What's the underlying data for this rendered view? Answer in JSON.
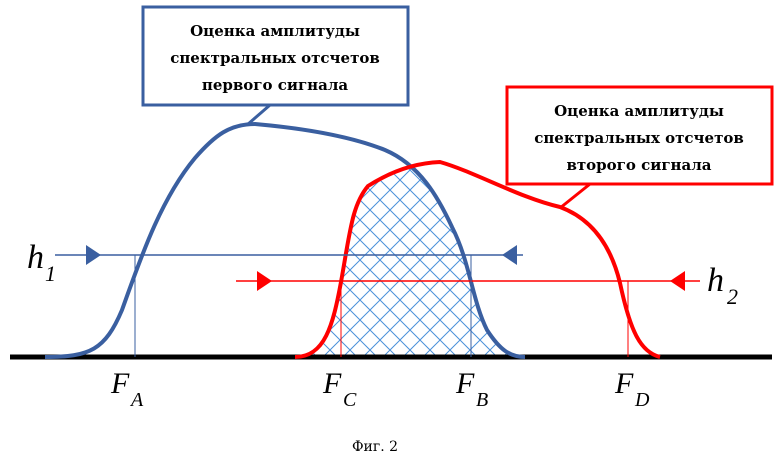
{
  "callout_first": {
    "lines": [
      "Оценка амплитуды",
      "спектральных отсчетов",
      "первого сигнала"
    ]
  },
  "callout_second": {
    "lines": [
      "Оценка амплитуды",
      "спектральных отсчетов",
      "второго сигнала"
    ]
  },
  "thresholds": {
    "h1": {
      "letter": "h",
      "sub": "1"
    },
    "h2": {
      "letter": "h",
      "sub": "2"
    }
  },
  "frequencies": [
    {
      "letter": "F",
      "sub": "A"
    },
    {
      "letter": "F",
      "sub": "C"
    },
    {
      "letter": "F",
      "sub": "B"
    },
    {
      "letter": "F",
      "sub": "D"
    }
  ],
  "caption": "Фиг. 2",
  "colors": {
    "first_signal": "#3a5fa0",
    "second_signal": "#ff0000",
    "axis": "#000000",
    "hatch": "#4a90d9"
  }
}
